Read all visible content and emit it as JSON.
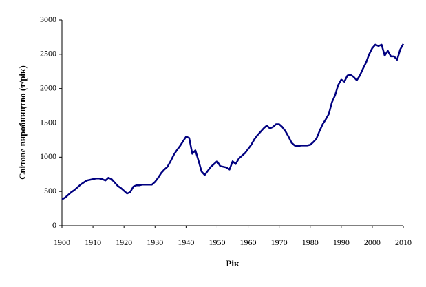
{
  "chart_data": {
    "type": "line",
    "x_label": "Рік",
    "y_label": "Світове виробництво (т/рік)",
    "x": [
      1900,
      1901,
      1902,
      1903,
      1904,
      1905,
      1906,
      1907,
      1908,
      1909,
      1910,
      1911,
      1912,
      1913,
      1914,
      1915,
      1916,
      1917,
      1918,
      1919,
      1920,
      1921,
      1922,
      1923,
      1924,
      1925,
      1926,
      1927,
      1928,
      1929,
      1930,
      1931,
      1932,
      1933,
      1934,
      1935,
      1936,
      1937,
      1938,
      1939,
      1940,
      1941,
      1942,
      1943,
      1944,
      1945,
      1946,
      1947,
      1948,
      1949,
      1950,
      1951,
      1952,
      1953,
      1954,
      1955,
      1956,
      1957,
      1958,
      1959,
      1960,
      1961,
      1962,
      1963,
      1964,
      1965,
      1966,
      1967,
      1968,
      1969,
      1970,
      1971,
      1972,
      1973,
      1974,
      1975,
      1976,
      1977,
      1978,
      1979,
      1980,
      1981,
      1982,
      1983,
      1984,
      1985,
      1986,
      1987,
      1988,
      1989,
      1990,
      1991,
      1992,
      1993,
      1994,
      1995,
      1996,
      1997,
      1998,
      1999,
      2000,
      2001,
      2002,
      2003,
      2004,
      2005,
      2006,
      2007,
      2008,
      2009,
      2010
    ],
    "series": [
      {
        "color": "#000080",
        "values": [
          385,
          410,
          450,
          490,
          520,
          560,
          600,
          630,
          660,
          670,
          680,
          690,
          690,
          680,
          660,
          700,
          680,
          630,
          580,
          550,
          510,
          470,
          490,
          570,
          590,
          590,
          600,
          600,
          600,
          600,
          640,
          700,
          770,
          820,
          860,
          940,
          1030,
          1100,
          1160,
          1230,
          1300,
          1280,
          1050,
          1100,
          950,
          790,
          740,
          800,
          860,
          900,
          940,
          870,
          860,
          850,
          820,
          940,
          900,
          980,
          1020,
          1060,
          1120,
          1180,
          1260,
          1320,
          1370,
          1420,
          1460,
          1420,
          1440,
          1480,
          1480,
          1440,
          1380,
          1300,
          1210,
          1170,
          1160,
          1170,
          1170,
          1170,
          1180,
          1220,
          1270,
          1380,
          1480,
          1550,
          1630,
          1800,
          1900,
          2050,
          2130,
          2100,
          2190,
          2200,
          2170,
          2120,
          2190,
          2290,
          2380,
          2500,
          2590,
          2640,
          2620,
          2640,
          2480,
          2550,
          2470,
          2470,
          2420,
          2570,
          2650
        ]
      }
    ],
    "xlim": [
      1900,
      2010
    ],
    "xticks": [
      1900,
      1910,
      1920,
      1930,
      1940,
      1950,
      1960,
      1970,
      1980,
      1990,
      2000,
      2010
    ],
    "ylim": [
      0,
      3000
    ],
    "yticks": [
      0,
      500,
      1000,
      1500,
      2000,
      2500,
      3000
    ]
  }
}
